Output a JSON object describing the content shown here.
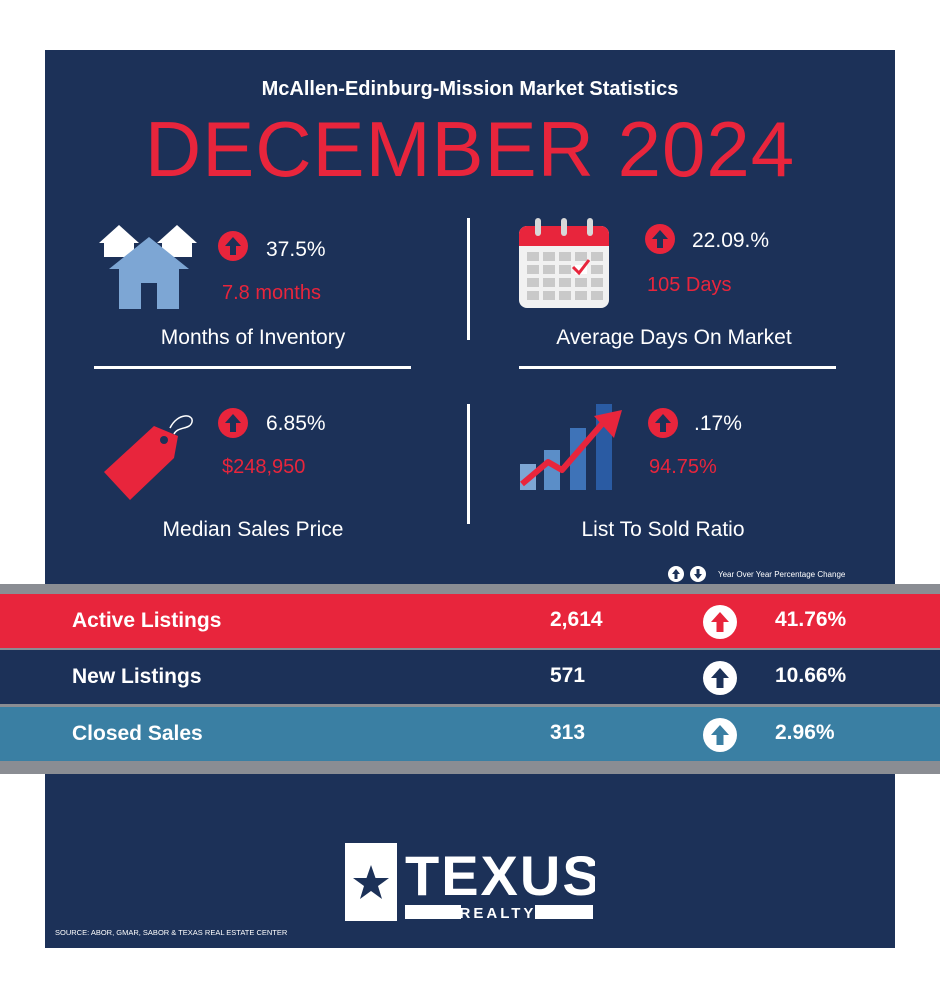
{
  "header": {
    "subtitle": "McAllen-Edinburg-Mission Market Statistics",
    "month": "DECEMBER 2024"
  },
  "stats": [
    {
      "label": "Months of Inventory",
      "change": "37.5%",
      "value": "7.8 months",
      "direction": "up",
      "icon": "houses-icon"
    },
    {
      "label": "Average Days On Market",
      "change": "22.09.%",
      "value": "105 Days",
      "direction": "up",
      "icon": "calendar-icon"
    },
    {
      "label": "Median Sales Price",
      "change": "6.85%",
      "value": "$248,950",
      "direction": "up",
      "icon": "price-tag-icon"
    },
    {
      "label": "List To Sold Ratio",
      "change": ".17%",
      "value": "94.75%",
      "direction": "up",
      "icon": "growth-chart-icon"
    }
  ],
  "legend": {
    "text": "Year  Over Year Percentage Change"
  },
  "rows": [
    {
      "name": "Active Listings",
      "value": "2,614",
      "change": "41.76%",
      "direction": "up"
    },
    {
      "name": "New Listings",
      "value": "571",
      "change": "10.66%",
      "direction": "up"
    },
    {
      "name": "Closed Sales",
      "value": "313",
      "change": "2.96%",
      "direction": "up"
    }
  ],
  "logo": {
    "name": "TEXUS",
    "tag": "REALTY"
  },
  "source": "SOURCE: ABOR, GMAR, SABOR & TEXAS REAL ESTATE CENTER",
  "colors": {
    "navy": "#1c3158",
    "red": "#e8253c",
    "teal": "#3a7fa3",
    "white": "#ffffff",
    "light_blue": "#7da6d4"
  }
}
